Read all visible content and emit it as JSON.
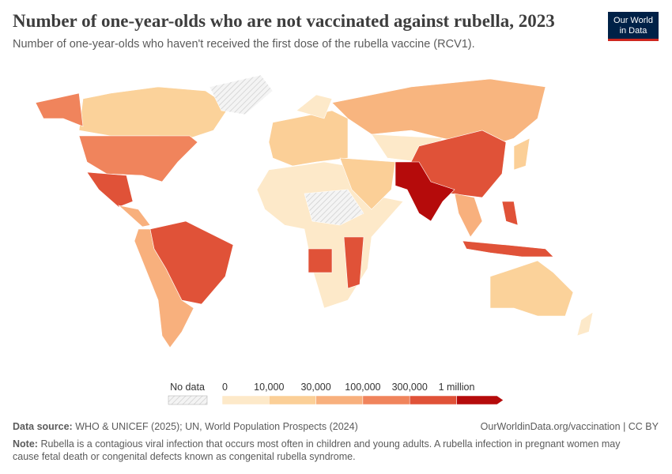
{
  "header": {
    "title": "Number of one-year-olds who are not vaccinated against rubella, 2023",
    "subtitle": "Number of one-year-olds who haven't received the first dose of the rubella vaccine (RCV1)."
  },
  "logo": {
    "line1": "Our World",
    "line2": "in Data"
  },
  "legend": {
    "no_data_label": "No data",
    "ticks": [
      0,
      {
        "value": 10000,
        "label": "10,000"
      },
      {
        "value": 30000,
        "label": "30,000"
      },
      {
        "value": 100000,
        "label": "100,000"
      },
      {
        "value": 300000,
        "label": "300,000"
      },
      {
        "value": 1000000,
        "label": "1 million"
      }
    ],
    "colors": [
      "#fde9c9",
      "#fbcf97",
      "#f8b07d",
      "#f0845c",
      "#e05238",
      "#b50b0b"
    ]
  },
  "footer": {
    "source_label": "Data source:",
    "source": "WHO & UNICEF (2025); UN, World Population Prospects (2024)",
    "url": "OurWorldinData.org/vaccination | CC BY",
    "note_label": "Note:",
    "note": "Rubella is a contagious viral infection that occurs most often in children and young adults. A rubella infection in pregnant women may cause fetal death or congenital defects known as congenital rubella syndrome."
  }
}
